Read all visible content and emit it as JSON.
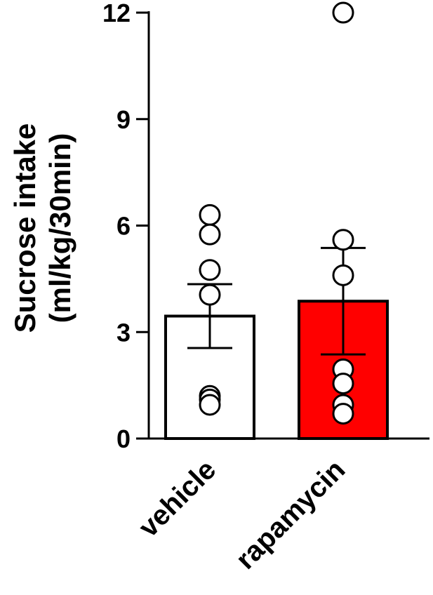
{
  "chart_data": {
    "type": "bar",
    "categories": [
      "vehicle",
      "rapamycin"
    ],
    "values": [
      3.45,
      3.87
    ],
    "error_sem": [
      0.9,
      1.5
    ],
    "points": [
      [
        6.3,
        5.75,
        4.75,
        4.05,
        1.2,
        1.1,
        0.95
      ],
      [
        12.0,
        5.6,
        4.6,
        1.95,
        1.55,
        0.95,
        0.7
      ]
    ],
    "bar_colors": [
      "#ffffff",
      "#ff0000"
    ],
    "ylabel_line1": "Sucrose intake",
    "ylabel_line2": "(ml/kg/30min)",
    "ylim": [
      0,
      12
    ],
    "yticks": [
      "0",
      "3",
      "6",
      "9",
      "12"
    ],
    "xlabel": "",
    "title": "",
    "grid": false
  }
}
